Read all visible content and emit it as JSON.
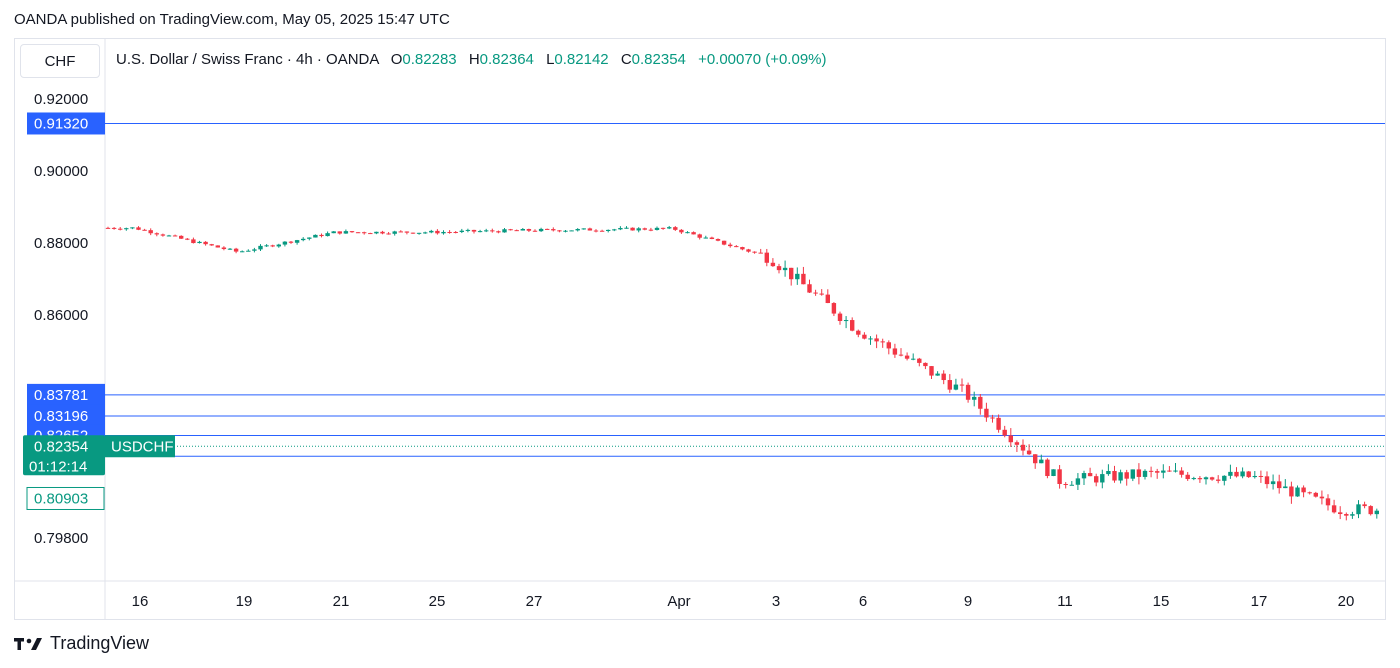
{
  "header": {
    "published_text": "OANDA published on TradingView.com, May 05, 2025 15:47 UTC"
  },
  "toolbar": {
    "currency": "CHF"
  },
  "legend": {
    "symbol_text": "U.S. Dollar / Swiss Franc · 4h · OANDA",
    "open_label": "O",
    "open_value": "0.82283",
    "high_label": "H",
    "high_value": "0.82364",
    "low_label": "L",
    "low_value": "0.82142",
    "close_label": "C",
    "close_value": "0.82354",
    "change_text": "+0.00070 (+0.09%)"
  },
  "footer": {
    "brand": "TradingView"
  },
  "colors": {
    "up": "#089981",
    "down": "#f23645",
    "level_line": "#2962ff",
    "level_label_bg": "#2962ff",
    "current_label_bg": "#089981"
  },
  "chart_data": {
    "type": "candlestick",
    "ylim": [
      0.7945,
      0.9225
    ],
    "y_ticks": [
      {
        "value": 0.92,
        "label": "0.92000"
      },
      {
        "value": 0.9,
        "label": "0.90000"
      },
      {
        "value": 0.88,
        "label": "0.88000"
      },
      {
        "value": 0.86,
        "label": "0.86000"
      },
      {
        "value": 0.798,
        "label": "0.79800"
      }
    ],
    "x_ticks": [
      "16",
      "19",
      "21",
      "25",
      "27",
      "Apr",
      "3",
      "6",
      "9",
      "11",
      "15",
      "17",
      "20"
    ],
    "levels": [
      0.9132,
      0.83781,
      0.83196,
      0.82652,
      0.82076
    ],
    "level_labels": [
      "0.91320",
      "0.83781",
      "0.83196",
      "0.82652",
      "0.82076"
    ],
    "current_price": 0.82354,
    "current_price_label": "0.82354",
    "current_symbol": "USDCHF",
    "countdown": "01:12:14",
    "low_marker": 0.80903,
    "low_marker_label": "0.80903",
    "anchors": [
      {
        "x": "16",
        "y": 0.8842
      },
      {
        "x": "19",
        "y": 0.8775
      },
      {
        "x": "21",
        "y": 0.883
      },
      {
        "x": "25",
        "y": 0.883
      },
      {
        "x": "27",
        "y": 0.8835
      },
      {
        "x": "Apr",
        "y": 0.884
      },
      {
        "x": "3",
        "y": 0.876
      },
      {
        "x": "6",
        "y": 0.856
      },
      {
        "x": "9",
        "y": 0.839
      },
      {
        "x": "11",
        "y": 0.814
      },
      {
        "x": "15",
        "y": 0.816
      },
      {
        "x": "17",
        "y": 0.815
      },
      {
        "x": "20",
        "y": 0.806
      }
    ]
  }
}
